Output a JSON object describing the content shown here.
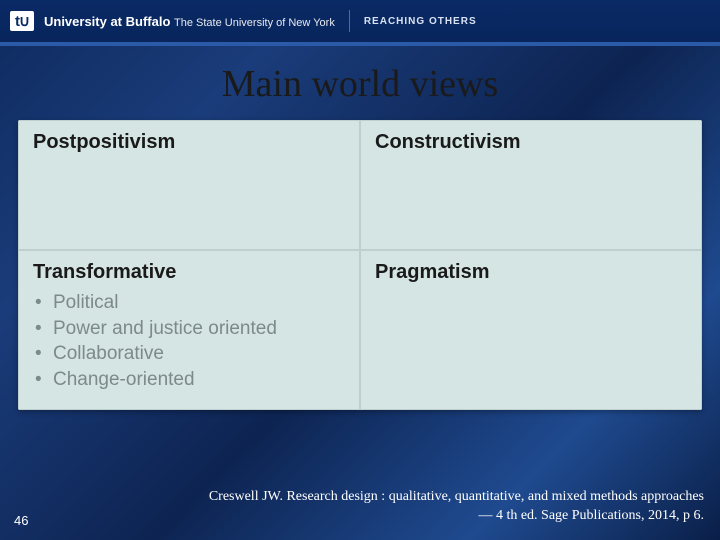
{
  "header": {
    "logo_badge": "↳",
    "inst_bold": "University at Buffalo",
    "inst_light": "The State University of New York",
    "tagline": "REACHING OTHERS"
  },
  "title": "Main world views",
  "grid": {
    "top_left": {
      "head": "Postpositivism",
      "items": []
    },
    "top_right": {
      "head": "Constructivism",
      "items": []
    },
    "bot_left": {
      "head": "Transformative",
      "items": [
        "Political",
        "Power and justice oriented",
        "Collaborative",
        "Change-oriented"
      ]
    },
    "bot_right": {
      "head": "Pragmatism",
      "items": []
    }
  },
  "citation_line1": "Creswell JW.  Research design : qualitative, quantitative, and mixed methods approaches",
  "citation_line2": "— 4 th ed. Sage Publications, 2014, p 6.",
  "page_number": "46",
  "colors": {
    "table_bg": "#d5e5e3",
    "muted_text": "#7c8a8a",
    "header_bg": "#0a2a66"
  }
}
